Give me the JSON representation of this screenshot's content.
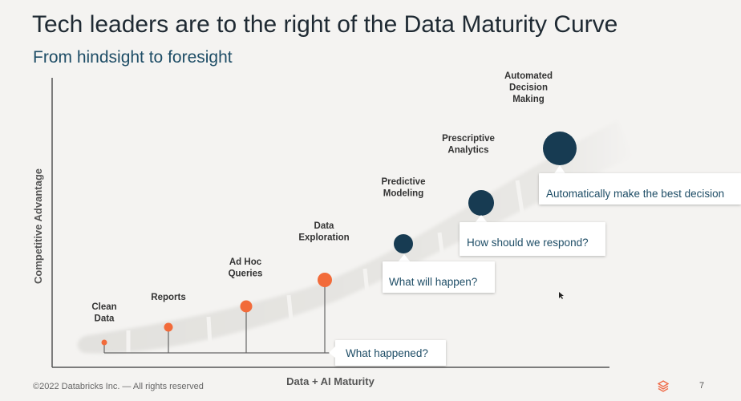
{
  "slide": {
    "title": "Tech leaders are to the right of the Data Maturity Curve",
    "subtitle": "From hindsight to foresight",
    "footer": "©2022 Databricks Inc. — All rights reserved",
    "page_number": "7"
  },
  "axes": {
    "x_label": "Data + AI Maturity",
    "y_label": "Competitive Advantage"
  },
  "stages": [
    {
      "label_lines": [
        "Clean",
        "Data"
      ],
      "color": "#f26b3a"
    },
    {
      "label_lines": [
        "Reports"
      ],
      "color": "#f26b3a"
    },
    {
      "label_lines": [
        "Ad Hoc",
        "Queries"
      ],
      "color": "#f26b3a"
    },
    {
      "label_lines": [
        "Data",
        "Exploration"
      ],
      "color": "#f26b3a"
    },
    {
      "label_lines": [
        "Predictive",
        "Modeling"
      ],
      "color": "#173b52"
    },
    {
      "label_lines": [
        "Prescriptive",
        "Analytics"
      ],
      "color": "#173b52"
    },
    {
      "label_lines": [
        "Automated",
        "Decision",
        "Making"
      ],
      "color": "#173b52"
    }
  ],
  "callouts": {
    "hindsight": "What happened?",
    "predictive": "What will happen?",
    "prescriptive": "How should we respond?",
    "automated": "Automatically make the best decision"
  }
}
